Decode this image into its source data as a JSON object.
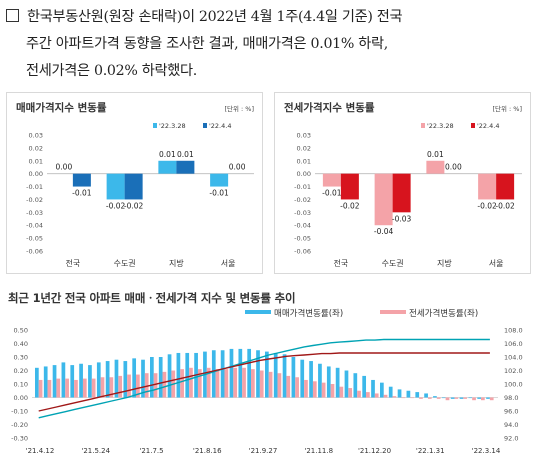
{
  "intro": {
    "line1": "한국부동산원(원장 손태락)이 2022년 4월 1주(4.4일 기준) 전국",
    "line2": "주간 아파트가격 동향을 조사한 결과, 매매가격은 0.01% 하락,",
    "line3": "전세가격은 0.02% 하락했다."
  },
  "chart_data": [
    {
      "type": "bar",
      "title": "매매가격지수 변동률",
      "unit": "[단위 : %]",
      "categories": [
        "전국",
        "수도권",
        "지방",
        "서울"
      ],
      "series": [
        {
          "name": "'22.3.28",
          "color": "#3cb8ea",
          "values": [
            0.0,
            -0.02,
            0.01,
            -0.01
          ]
        },
        {
          "name": "'22.4.4",
          "color": "#1a6fb8",
          "values": [
            -0.01,
            -0.02,
            0.01,
            0.0
          ]
        }
      ],
      "ylim": [
        -0.06,
        0.03
      ],
      "yticks": [
        "0.03",
        "0.02",
        "0.01",
        "0.00",
        "-0.01",
        "-0.02",
        "-0.03",
        "-0.04",
        "-0.05",
        "-0.06"
      ]
    },
    {
      "type": "bar",
      "title": "전세가격지수 변동률",
      "unit": "[단위 : %]",
      "categories": [
        "전국",
        "수도권",
        "지방",
        "서울"
      ],
      "series": [
        {
          "name": "'22.3.28",
          "color": "#f4a3a8",
          "values": [
            -0.01,
            -0.04,
            0.01,
            -0.02
          ]
        },
        {
          "name": "'22.4.4",
          "color": "#d7141e",
          "values": [
            -0.02,
            -0.03,
            0.0,
            -0.02
          ]
        }
      ],
      "ylim": [
        -0.06,
        0.03
      ],
      "yticks": [
        "0.03",
        "0.02",
        "0.01",
        "0.00",
        "-0.01",
        "-0.02",
        "-0.03",
        "-0.04",
        "-0.05",
        "-0.06"
      ]
    },
    {
      "type": "bar",
      "title": "최근 1년간 전국 아파트 매매ㆍ전세가격 지수 및 변동률 추이",
      "legend": [
        "매매가격변동률(좌)",
        "전세가격변동률(좌)"
      ],
      "series_colors": {
        "sale": "#3cb8ea",
        "jeonse": "#f4a3a8",
        "sale_line": "#00a3b4",
        "jeonse_line": "#a01818"
      },
      "x_labels": [
        "'21.4.12",
        "'21.5.24",
        "'21.7.5",
        "'21.8.16",
        "'21.9.27",
        "'21.11.8",
        "'21.12.20",
        "'22.1.31",
        "'22.3.14"
      ],
      "y_left_ticks": [
        "0.50",
        "0.40",
        "0.30",
        "0.20",
        "0.10",
        "0.00",
        "-0.10",
        "-0.20",
        "-0.30"
      ],
      "y_left_lim": [
        -0.3,
        0.5
      ],
      "y_right_ticks": [
        "108.0",
        "106.0",
        "104.0",
        "102.0",
        "100.0",
        "98.0",
        "96.0",
        "94.0",
        "92.0"
      ],
      "y_right_lim": [
        92,
        108
      ],
      "sale_change": [
        0.22,
        0.23,
        0.24,
        0.26,
        0.24,
        0.25,
        0.24,
        0.26,
        0.27,
        0.28,
        0.27,
        0.29,
        0.28,
        0.3,
        0.3,
        0.32,
        0.33,
        0.33,
        0.33,
        0.34,
        0.35,
        0.35,
        0.36,
        0.36,
        0.36,
        0.35,
        0.34,
        0.33,
        0.32,
        0.3,
        0.28,
        0.27,
        0.25,
        0.23,
        0.22,
        0.2,
        0.18,
        0.16,
        0.13,
        0.11,
        0.08,
        0.06,
        0.05,
        0.04,
        0.03,
        0.01,
        0.0,
        -0.01,
        -0.01,
        0.0,
        -0.01,
        -0.01
      ],
      "jeonse_change": [
        0.13,
        0.13,
        0.14,
        0.14,
        0.13,
        0.14,
        0.14,
        0.15,
        0.15,
        0.16,
        0.17,
        0.17,
        0.18,
        0.18,
        0.19,
        0.2,
        0.21,
        0.22,
        0.21,
        0.22,
        0.21,
        0.21,
        0.22,
        0.22,
        0.21,
        0.2,
        0.19,
        0.18,
        0.16,
        0.15,
        0.13,
        0.12,
        0.11,
        0.1,
        0.08,
        0.07,
        0.05,
        0.04,
        0.03,
        0.02,
        0.01,
        0.0,
        0.0,
        -0.01,
        -0.01,
        -0.01,
        -0.02,
        -0.01,
        -0.01,
        -0.02,
        -0.02,
        -0.02
      ],
      "sale_index": [
        95.0,
        95.3,
        95.6,
        95.9,
        96.2,
        96.5,
        96.8,
        97.1,
        97.4,
        97.7,
        98.0,
        98.4,
        98.8,
        99.1,
        99.5,
        99.9,
        100.3,
        100.7,
        101.1,
        101.5,
        101.9,
        102.3,
        102.7,
        103.1,
        103.5,
        103.9,
        104.3,
        104.6,
        104.9,
        105.2,
        105.5,
        105.7,
        105.9,
        106.1,
        106.2,
        106.3,
        106.4,
        106.5,
        106.5,
        106.6,
        106.6,
        106.6,
        106.6,
        106.6,
        106.6,
        106.6,
        106.6,
        106.6,
        106.6,
        106.6,
        106.6,
        106.6
      ],
      "jeonse_index": [
        96.0,
        96.3,
        96.6,
        96.9,
        97.2,
        97.5,
        97.8,
        98.1,
        98.4,
        98.7,
        99.0,
        99.3,
        99.6,
        99.9,
        100.2,
        100.5,
        100.8,
        101.1,
        101.4,
        101.7,
        102.0,
        102.3,
        102.6,
        102.9,
        103.2,
        103.5,
        103.7,
        103.9,
        104.1,
        104.2,
        104.3,
        104.4,
        104.5,
        104.5,
        104.6,
        104.6,
        104.6,
        104.6,
        104.6,
        104.6,
        104.6,
        104.6,
        104.6,
        104.6,
        104.6,
        104.6,
        104.6,
        104.6,
        104.6,
        104.6,
        104.6,
        104.6
      ]
    }
  ]
}
